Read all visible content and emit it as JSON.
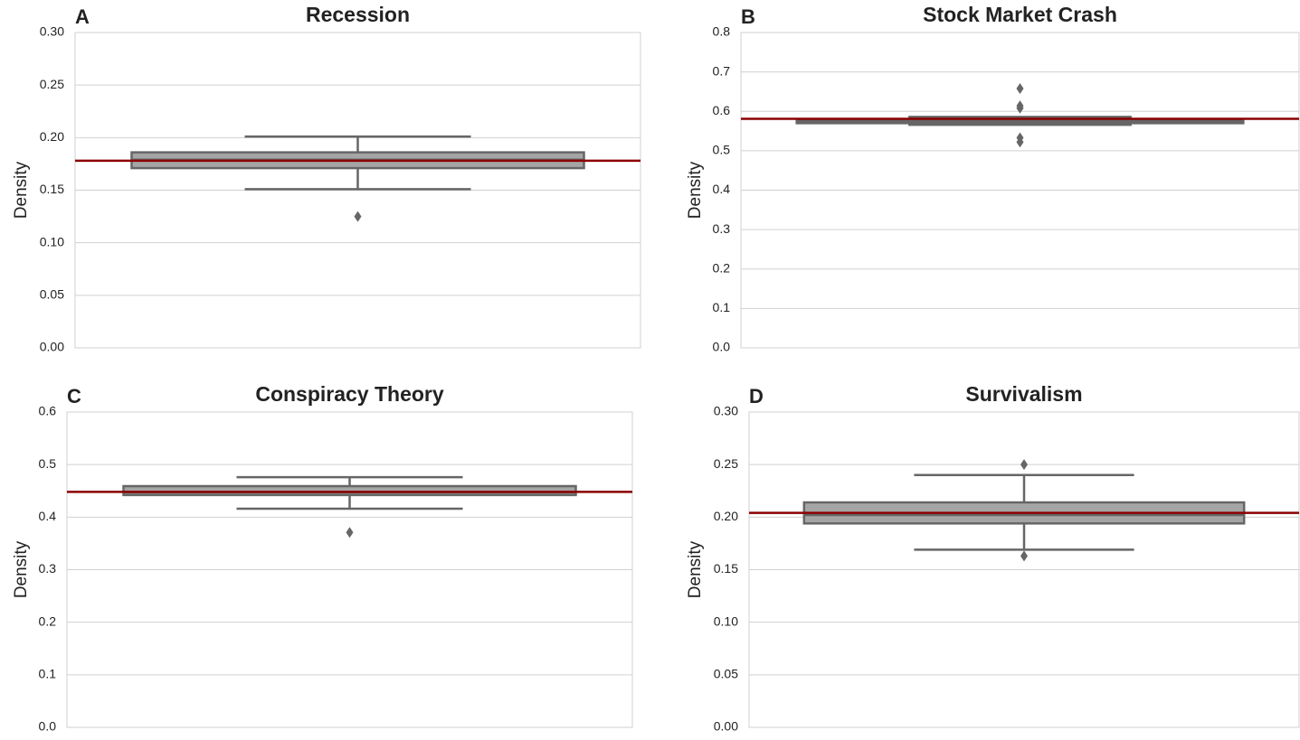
{
  "chart_data": [
    {
      "type": "box",
      "panel": "A",
      "title": "Recession",
      "ylabel": "Density",
      "ylim": [
        0,
        0.3
      ],
      "yticks": [
        {
          "value": 0,
          "label": "0.00"
        },
        0.05,
        {
          "value": 0.1,
          "label": "0.10"
        },
        0.15,
        {
          "value": 0.2,
          "label": "0.20"
        },
        0.25,
        {
          "value": 0.3,
          "label": "0.30"
        }
      ],
      "whisker_low": 0.151,
      "q1": 0.171,
      "median": 0.179,
      "q3": 0.186,
      "whisker_high": 0.201,
      "outliers": [
        0.125
      ],
      "reference": 0.178,
      "color": "#a5a5a5",
      "reference_color": "#8b0000",
      "grid": true
    },
    {
      "type": "box",
      "panel": "B",
      "title": "Stock Market Crash",
      "ylabel": "Density",
      "ylim": [
        0,
        0.8
      ],
      "yticks": [
        {
          "value": 0,
          "label": "0.0"
        },
        0.1,
        0.2,
        0.3,
        0.4,
        0.5,
        0.6,
        0.7,
        0.8
      ],
      "whisker_low": 0.566,
      "q1": 0.57,
      "median": 0.575,
      "q3": 0.579,
      "whisker_high": 0.586,
      "outliers": [
        0.658,
        0.614,
        0.608,
        0.533,
        0.522
      ],
      "reference": 0.581,
      "color": "#a5a5a5",
      "reference_color": "#8b0000",
      "grid": true
    },
    {
      "type": "box",
      "panel": "C",
      "title": "Conspiracy Theory",
      "ylabel": "Density",
      "ylim": [
        0,
        0.6
      ],
      "yticks": [
        {
          "value": 0,
          "label": "0.0"
        },
        0.1,
        0.2,
        0.3,
        0.4,
        0.5,
        0.6
      ],
      "whisker_low": 0.416,
      "q1": 0.442,
      "median": 0.447,
      "q3": 0.459,
      "whisker_high": 0.476,
      "outliers": [
        0.371
      ],
      "reference": 0.448,
      "color": "#a5a5a5",
      "reference_color": "#8b0000",
      "grid": true
    },
    {
      "type": "box",
      "panel": "D",
      "title": "Survivalism",
      "ylabel": "Density",
      "ylim": [
        0,
        0.3
      ],
      "yticks": [
        {
          "value": 0,
          "label": "0.00"
        },
        0.05,
        {
          "value": 0.1,
          "label": "0.10"
        },
        0.15,
        {
          "value": 0.2,
          "label": "0.20"
        },
        0.25,
        {
          "value": 0.3,
          "label": "0.30"
        }
      ],
      "whisker_low": 0.169,
      "q1": 0.194,
      "median": 0.202,
      "q3": 0.214,
      "whisker_high": 0.24,
      "outliers": [
        0.25,
        0.163
      ],
      "reference": 0.204,
      "color": "#a5a5a5",
      "reference_color": "#8b0000",
      "grid": true
    }
  ]
}
